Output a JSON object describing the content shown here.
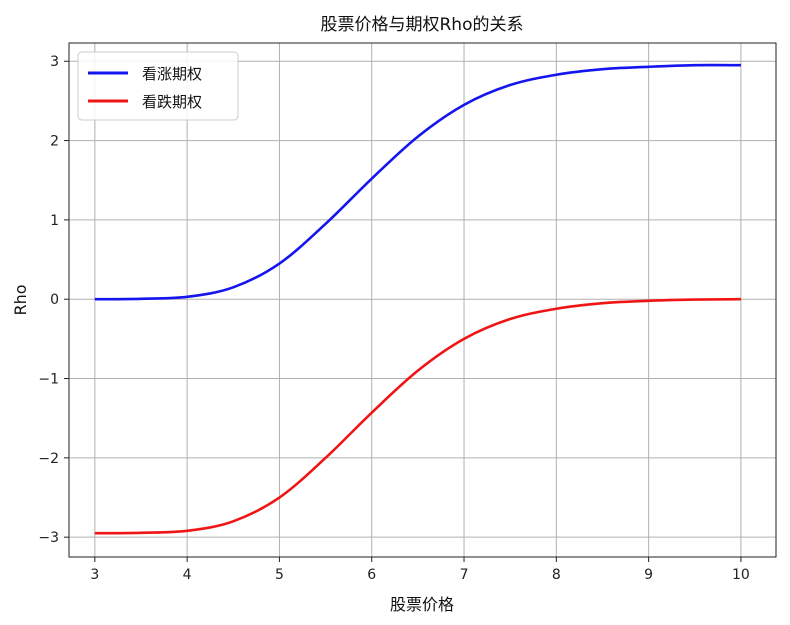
{
  "chart_data": {
    "type": "line",
    "title": "股票价格与期权Rho的关系",
    "xlabel": "股票价格",
    "ylabel": "Rho",
    "xlim": [
      2.72,
      10.38
    ],
    "ylim": [
      -3.25,
      3.23
    ],
    "xticks": [
      3,
      4,
      5,
      6,
      7,
      8,
      9,
      10
    ],
    "yticks": [
      -3,
      -2,
      -1,
      0,
      1,
      2,
      3
    ],
    "xtick_labels": [
      "3",
      "4",
      "5",
      "6",
      "7",
      "8",
      "9",
      "10"
    ],
    "ytick_labels": [
      "−3",
      "−2",
      "−1",
      "0",
      "1",
      "2",
      "3"
    ],
    "grid": true,
    "legend_position": "top-left",
    "series": [
      {
        "name": "看涨期权",
        "color": "#1515f0",
        "x": [
          3.0,
          3.5,
          4.0,
          4.5,
          5.0,
          5.5,
          6.0,
          6.5,
          7.0,
          7.5,
          8.0,
          8.5,
          9.0,
          9.5,
          10.0
        ],
        "y": [
          0.0,
          0.005,
          0.03,
          0.15,
          0.45,
          0.95,
          1.52,
          2.05,
          2.45,
          2.7,
          2.83,
          2.9,
          2.93,
          2.95,
          2.95
        ]
      },
      {
        "name": "看跌期权",
        "color": "#f01515",
        "x": [
          3.0,
          3.5,
          4.0,
          4.5,
          5.0,
          5.5,
          6.0,
          6.5,
          7.0,
          7.5,
          8.0,
          8.5,
          9.0,
          9.5,
          10.0
        ],
        "y": [
          -2.95,
          -2.945,
          -2.92,
          -2.8,
          -2.5,
          -2.0,
          -1.43,
          -0.9,
          -0.5,
          -0.25,
          -0.12,
          -0.05,
          -0.02,
          -0.005,
          0.0
        ]
      }
    ]
  }
}
